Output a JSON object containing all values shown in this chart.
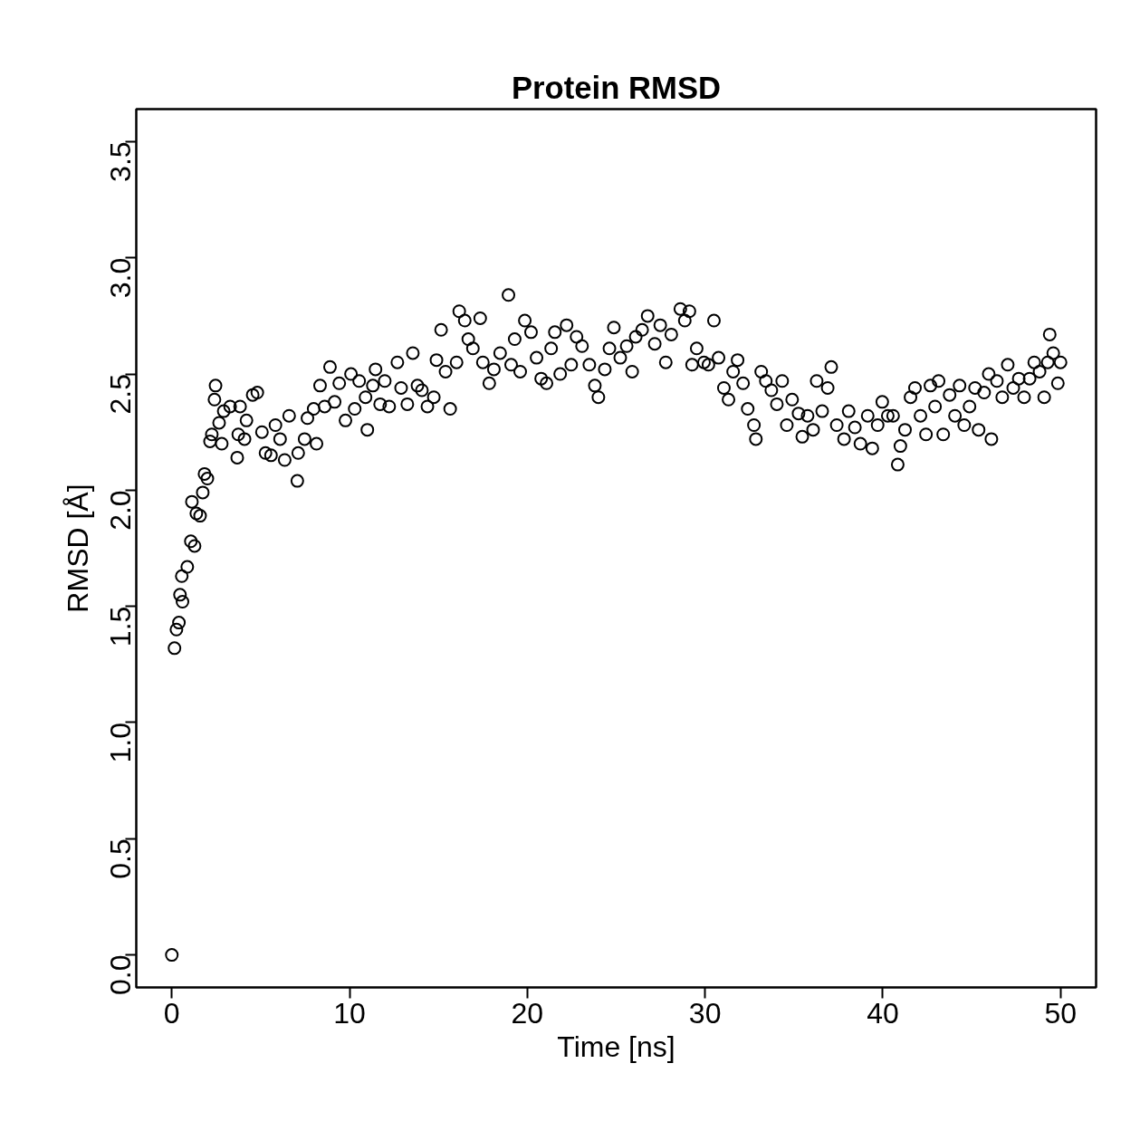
{
  "chart_data": {
    "type": "scatter",
    "title": "Protein RMSD",
    "xlabel": "Time [ns]",
    "ylabel": "RMSD [Å]",
    "xlim": [
      -2,
      52
    ],
    "ylim": [
      -0.14,
      3.64
    ],
    "xticks": [
      0,
      10,
      20,
      30,
      40,
      50
    ],
    "yticks": [
      {
        "value": 0,
        "label": "0.0"
      },
      {
        "value": 0.5,
        "label": "0.5"
      },
      {
        "value": 1,
        "label": "1.0"
      },
      {
        "value": 1.5,
        "label": "1.5"
      },
      {
        "value": 2,
        "label": "2.0"
      },
      {
        "value": 2.5,
        "label": "2.5"
      },
      {
        "value": 3,
        "label": "3.0"
      },
      {
        "value": 3.5,
        "label": "3.5"
      }
    ],
    "grid": false,
    "marker": "circle",
    "series": [
      {
        "color": "#000000",
        "x": [
          0,
          0.15,
          0.26,
          0.4,
          0.46,
          0.6,
          0.56,
          0.87,
          1.07,
          1.28,
          1.13,
          1.38,
          1.59,
          1.74,
          1.84,
          2.0,
          2.15,
          2.25,
          2.46,
          2.4,
          2.66,
          2.81,
          2.92,
          3.28,
          3.68,
          3.74,
          3.84,
          4.09,
          4.2,
          4.55,
          4.81,
          5.07,
          5.27,
          5.58,
          5.83,
          6.09,
          6.35,
          6.6,
          7.06,
          7.11,
          7.47,
          7.63,
          7.98,
          8.14,
          8.34,
          8.6,
          8.9,
          9.16,
          9.42,
          9.77,
          10.08,
          10.29,
          10.54,
          10.9,
          11.0,
          11.31,
          11.46,
          11.72,
          11.98,
          12.23,
          12.69,
          12.9,
          13.25,
          13.56,
          13.82,
          14.07,
          14.38,
          14.74,
          14.89,
          15.15,
          15.4,
          15.66,
          16.02,
          16.17,
          16.48,
          16.68,
          16.94,
          17.35,
          17.5,
          17.86,
          18.12,
          18.47,
          18.94,
          19.09,
          19.29,
          19.6,
          19.86,
          20.21,
          20.52,
          20.78,
          21.08,
          21.34,
          21.55,
          21.85,
          22.21,
          22.47,
          22.77,
          23.08,
          23.49,
          23.8,
          24.0,
          24.36,
          24.62,
          24.87,
          25.23,
          25.59,
          25.9,
          26.1,
          26.46,
          26.77,
          27.17,
          27.48,
          27.79,
          28.1,
          28.61,
          28.86,
          29.12,
          29.27,
          29.53,
          29.94,
          30.19,
          30.5,
          30.76,
          31.06,
          31.32,
          31.58,
          31.83,
          32.14,
          32.4,
          32.75,
          32.86,
          33.16,
          33.42,
          33.73,
          34.04,
          34.34,
          34.6,
          34.9,
          35.26,
          35.47,
          35.77,
          36.08,
          36.28,
          36.59,
          36.9,
          37.1,
          37.41,
          37.82,
          38.08,
          38.43,
          38.74,
          39.15,
          39.41,
          39.71,
          39.97,
          40.28,
          40.58,
          40.84,
          40.99,
          41.25,
          41.56,
          41.81,
          42.12,
          42.43,
          42.68,
          42.94,
          43.14,
          43.4,
          43.76,
          44.06,
          44.32,
          44.58,
          44.88,
          45.19,
          45.39,
          45.7,
          45.96,
          46.11,
          46.42,
          46.72,
          47.03,
          47.34,
          47.65,
          47.95,
          48.26,
          48.52,
          48.82,
          49.08,
          49.28,
          49.39,
          49.59,
          49.85,
          50.0
        ],
        "values": [
          0,
          1.32,
          1.4,
          1.43,
          1.55,
          1.52,
          1.63,
          1.67,
          1.78,
          1.76,
          1.95,
          1.9,
          1.89,
          1.99,
          2.07,
          2.05,
          2.21,
          2.24,
          2.45,
          2.39,
          2.29,
          2.2,
          2.34,
          2.36,
          2.14,
          2.24,
          2.36,
          2.22,
          2.3,
          2.41,
          2.42,
          2.25,
          2.16,
          2.15,
          2.28,
          2.22,
          2.13,
          2.32,
          2.04,
          2.16,
          2.22,
          2.31,
          2.35,
          2.2,
          2.45,
          2.36,
          2.53,
          2.38,
          2.46,
          2.3,
          2.5,
          2.35,
          2.47,
          2.4,
          2.26,
          2.45,
          2.52,
          2.37,
          2.47,
          2.36,
          2.55,
          2.44,
          2.37,
          2.59,
          2.45,
          2.43,
          2.36,
          2.4,
          2.56,
          2.69,
          2.51,
          2.35,
          2.55,
          2.77,
          2.73,
          2.65,
          2.61,
          2.74,
          2.55,
          2.46,
          2.52,
          2.59,
          2.84,
          2.54,
          2.65,
          2.51,
          2.73,
          2.68,
          2.57,
          2.48,
          2.46,
          2.61,
          2.68,
          2.5,
          2.71,
          2.54,
          2.66,
          2.62,
          2.54,
          2.45,
          2.4,
          2.52,
          2.61,
          2.7,
          2.57,
          2.62,
          2.51,
          2.66,
          2.69,
          2.75,
          2.63,
          2.71,
          2.55,
          2.67,
          2.78,
          2.73,
          2.77,
          2.54,
          2.61,
          2.55,
          2.54,
          2.73,
          2.57,
          2.44,
          2.39,
          2.51,
          2.56,
          2.46,
          2.35,
          2.28,
          2.22,
          2.51,
          2.47,
          2.43,
          2.37,
          2.47,
          2.28,
          2.39,
          2.33,
          2.23,
          2.32,
          2.26,
          2.47,
          2.34,
          2.44,
          2.53,
          2.28,
          2.22,
          2.34,
          2.27,
          2.2,
          2.32,
          2.18,
          2.28,
          2.38,
          2.32,
          2.32,
          2.11,
          2.19,
          2.26,
          2.4,
          2.44,
          2.32,
          2.24,
          2.45,
          2.36,
          2.47,
          2.24,
          2.41,
          2.32,
          2.45,
          2.28,
          2.36,
          2.44,
          2.26,
          2.42,
          2.5,
          2.22,
          2.47,
          2.4,
          2.54,
          2.44,
          2.48,
          2.4,
          2.48,
          2.55,
          2.51,
          2.4,
          2.55,
          2.67,
          2.59,
          2.46,
          2.55
        ]
      }
    ]
  }
}
